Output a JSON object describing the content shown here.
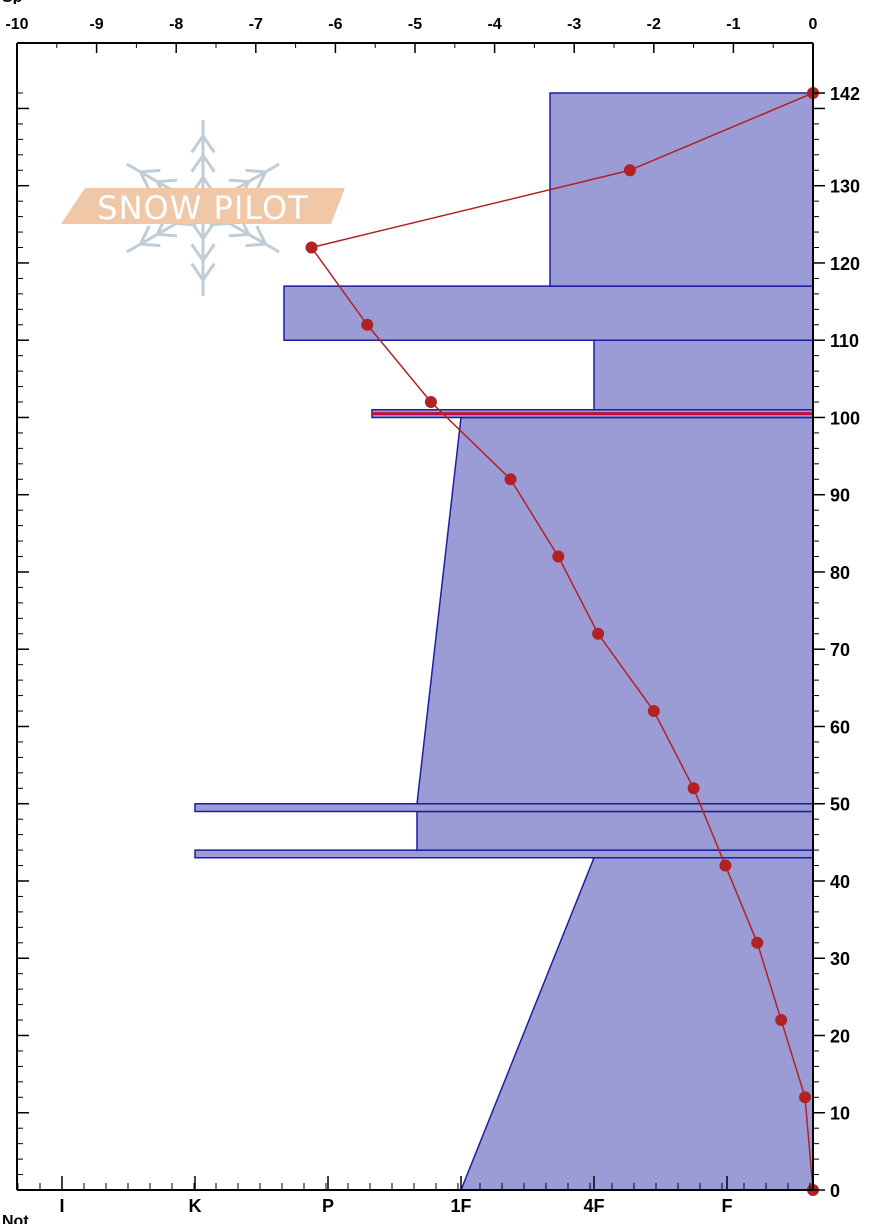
{
  "chart_data": {
    "type": "snow-profile",
    "temperature_axis": {
      "ticks": [
        "-10",
        "-9",
        "-8",
        "-7",
        "-6",
        "-5",
        "-4",
        "-3",
        "-2",
        "-1",
        "0"
      ],
      "range": [
        -10,
        0
      ]
    },
    "height_axis": {
      "range": [
        0,
        142
      ],
      "tick_labels": [
        "0",
        "10",
        "20",
        "30",
        "40",
        "50",
        "60",
        "70",
        "80",
        "90",
        "100",
        "110",
        "120",
        "130",
        "142"
      ]
    },
    "hardness_axis": {
      "labels": [
        "I",
        "K",
        "P",
        "1F",
        "4F",
        "F"
      ]
    },
    "hardness_profile": [
      {
        "bottom": 0,
        "top": 43,
        "hardness_bottom": "1F",
        "hardness_top": "4F"
      },
      {
        "bottom": 43,
        "top": 44,
        "hardness_bottom": "K",
        "hardness_top": "K"
      },
      {
        "bottom": 44,
        "top": 49,
        "hardness_bottom": "1F+",
        "hardness_top": "1F+"
      },
      {
        "bottom": 49,
        "top": 50,
        "hardness_bottom": "K",
        "hardness_top": "K"
      },
      {
        "bottom": 50,
        "top": 100,
        "hardness_bottom": "1F+",
        "hardness_top": "1F"
      },
      {
        "bottom": 100,
        "top": 101,
        "hardness_bottom": "P-",
        "hardness_top": "P-"
      },
      {
        "bottom": 101,
        "top": 110,
        "hardness_bottom": "4F",
        "hardness_top": "4F"
      },
      {
        "bottom": 110,
        "top": 117,
        "hardness_bottom": "P+",
        "hardness_top": "P+"
      },
      {
        "bottom": 117,
        "top": 142,
        "hardness_bottom": "4F+",
        "hardness_top": "4F+"
      }
    ],
    "temperature_profile": [
      {
        "height": 0,
        "temp": 0.0
      },
      {
        "height": 12,
        "temp": -0.1
      },
      {
        "height": 22,
        "temp": -0.4
      },
      {
        "height": 32,
        "temp": -0.7
      },
      {
        "height": 42,
        "temp": -1.1
      },
      {
        "height": 52,
        "temp": -1.5
      },
      {
        "height": 62,
        "temp": -2.0
      },
      {
        "height": 72,
        "temp": -2.7
      },
      {
        "height": 82,
        "temp": -3.2
      },
      {
        "height": 92,
        "temp": -3.8
      },
      {
        "height": 102,
        "temp": -4.8
      },
      {
        "height": 112,
        "temp": -5.6
      },
      {
        "height": 122,
        "temp": -6.3
      },
      {
        "height": 132,
        "temp": -2.3
      },
      {
        "height": 142,
        "temp": 0.0
      }
    ],
    "marked_layer_height": 100.5,
    "colors": {
      "hardness_fill": "#9b9bd6",
      "hardness_stroke": "#1e1ea0",
      "temperature_line": "#b22222",
      "temperature_point": "#b22222",
      "marked_layer": "#c0103a",
      "axis": "#000000"
    }
  },
  "watermark": {
    "text": "SNOW PILOT",
    "band_color": "#f0c8a8",
    "flake_color": "#c0ccd6"
  },
  "partial_labels": {
    "top_left": "Sp",
    "bottom_left": "Not"
  }
}
